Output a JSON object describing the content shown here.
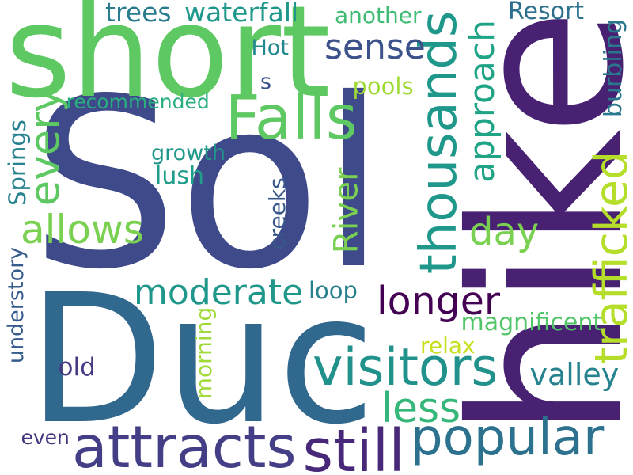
{
  "word_cloud": {
    "words": [
      {
        "text": "Sol",
        "color": "#3e4a89"
      },
      {
        "text": "Duc",
        "color": "#31688e"
      },
      {
        "text": "hike",
        "color": "#482173"
      },
      {
        "text": "short",
        "color": "#5ec962"
      },
      {
        "text": "attracts",
        "color": "#433e85"
      },
      {
        "text": "popular",
        "color": "#2c728e"
      },
      {
        "text": "thousands",
        "color": "#1f988b"
      },
      {
        "text": "visitors",
        "color": "#21918c"
      },
      {
        "text": "Falls",
        "color": "#5ec962"
      },
      {
        "text": "every",
        "color": "#5ec962"
      },
      {
        "text": "allows",
        "color": "#7ad151"
      },
      {
        "text": "River",
        "color": "#7ad151"
      },
      {
        "text": "moderate",
        "color": "#1f988b"
      },
      {
        "text": "longer",
        "color": "#440154"
      },
      {
        "text": "still",
        "color": "#482878"
      },
      {
        "text": "less",
        "color": "#35b779"
      },
      {
        "text": "day",
        "color": "#7ad151"
      },
      {
        "text": "sense",
        "color": "#3b528b"
      },
      {
        "text": "approach",
        "color": "#20a486"
      },
      {
        "text": "trafficked",
        "color": "#b5de2b"
      },
      {
        "text": "valley",
        "color": "#26828e"
      },
      {
        "text": "Springs",
        "color": "#26828e"
      },
      {
        "text": "understory",
        "color": "#365c8d"
      },
      {
        "text": "creeks",
        "color": "#38588c"
      },
      {
        "text": "morning",
        "color": "#a0da39"
      },
      {
        "text": "burbling",
        "color": "#2a788e"
      },
      {
        "text": "waterfall",
        "color": "#1f988b"
      },
      {
        "text": "trees",
        "color": "#287c8e"
      },
      {
        "text": "another",
        "color": "#3fbc73"
      },
      {
        "text": "Resort",
        "color": "#2d708e"
      },
      {
        "text": "Hot",
        "color": "#23898e"
      },
      {
        "text": "pools",
        "color": "#a0da39"
      },
      {
        "text": "recommended",
        "color": "#29af7f"
      },
      {
        "text": "growth",
        "color": "#1f988b"
      },
      {
        "text": "lush",
        "color": "#1f9e89"
      },
      {
        "text": "loop",
        "color": "#277f8e"
      },
      {
        "text": "magnificent",
        "color": "#52c569"
      },
      {
        "text": "relax",
        "color": "#c8e020"
      },
      {
        "text": "old",
        "color": "#443983"
      },
      {
        "text": "even",
        "color": "#46337e"
      },
      {
        "text": "s",
        "color": "#3b528b"
      }
    ]
  }
}
